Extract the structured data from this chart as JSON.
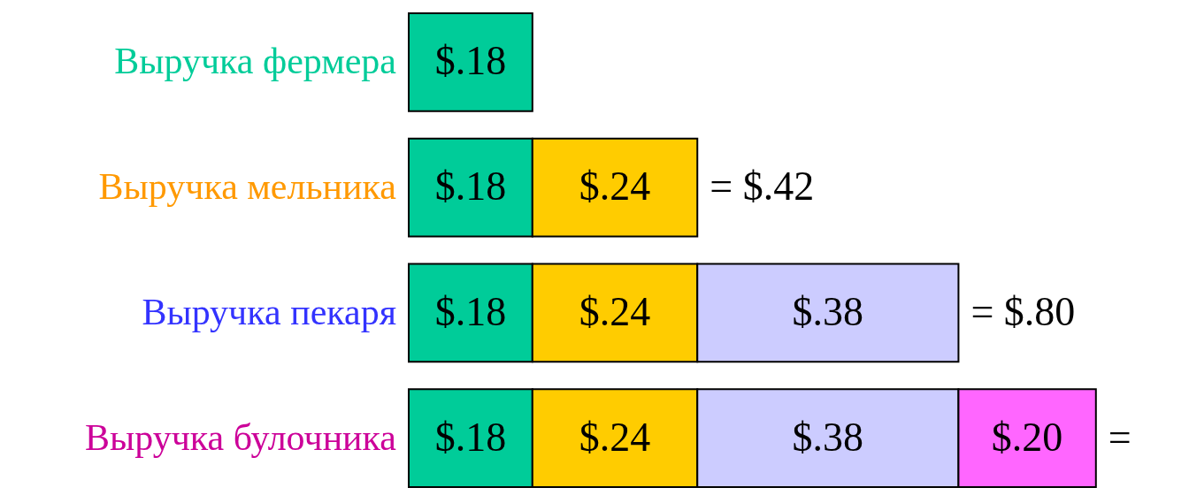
{
  "chart_data": {
    "type": "bar",
    "orientation": "horizontal",
    "stacked": true,
    "tick_labels": "y",
    "categories": [
      "Выручка фермера",
      "Выручка мельника",
      "Выручка пекаря",
      "Выручка булочника"
    ],
    "series": [
      {
        "color": "#00cc99",
        "values": [
          0.18,
          0.18,
          0.18,
          0.18
        ],
        "value_labels": [
          "$.18",
          "$.18",
          "$.18",
          "$.18"
        ]
      },
      {
        "color": "#ffcc00",
        "values": [
          null,
          0.24,
          0.24,
          0.24
        ],
        "value_labels": [
          null,
          "$.24",
          "$.24",
          "$.24"
        ]
      },
      {
        "color": "#ccccff",
        "values": [
          null,
          null,
          0.38,
          0.38
        ],
        "value_labels": [
          null,
          null,
          "$.38",
          "$.38"
        ]
      },
      {
        "color": "#ff66ff",
        "values": [
          null,
          null,
          null,
          0.2
        ],
        "value_labels": [
          null,
          null,
          null,
          "$.20"
        ]
      }
    ],
    "totals": [
      null,
      "= $.42",
      "= $.80",
      "="
    ]
  }
}
